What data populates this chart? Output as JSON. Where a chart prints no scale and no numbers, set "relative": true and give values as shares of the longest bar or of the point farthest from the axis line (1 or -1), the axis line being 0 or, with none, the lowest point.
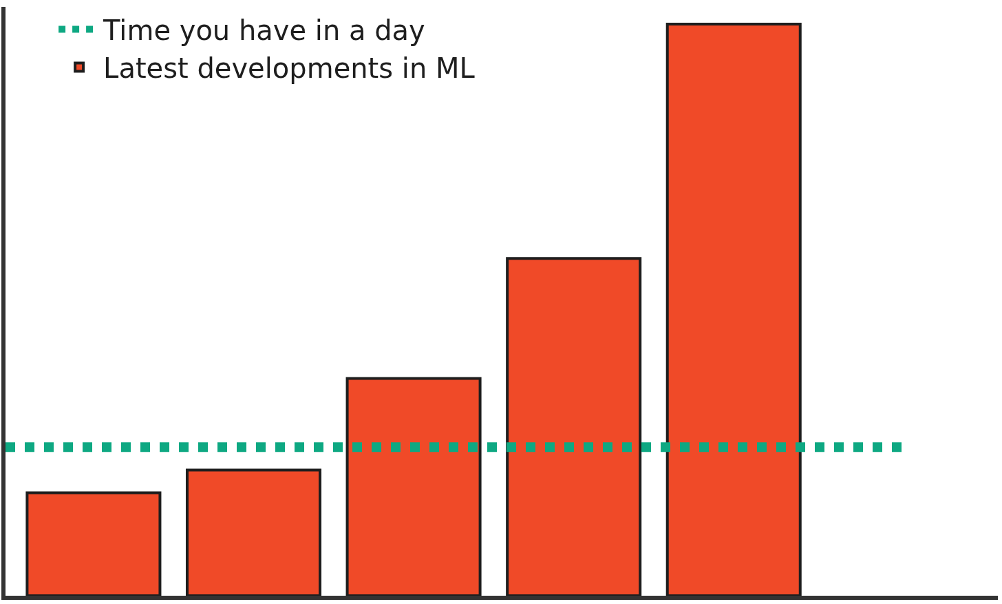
{
  "chart_data": {
    "type": "bar",
    "relative": true,
    "categories": [
      null,
      null,
      null,
      null,
      null
    ],
    "series": [
      {
        "name": "Latest developments in ML",
        "color": "#f04a28",
        "values": [
          0.18,
          0.22,
          0.38,
          0.59,
          1
        ]
      }
    ],
    "ref_lines": [
      {
        "axis": "y",
        "value": 0.26,
        "label": "Time you have in a day",
        "color": "#0ea882",
        "line_style": "dotted"
      }
    ],
    "legend": "top left"
  }
}
